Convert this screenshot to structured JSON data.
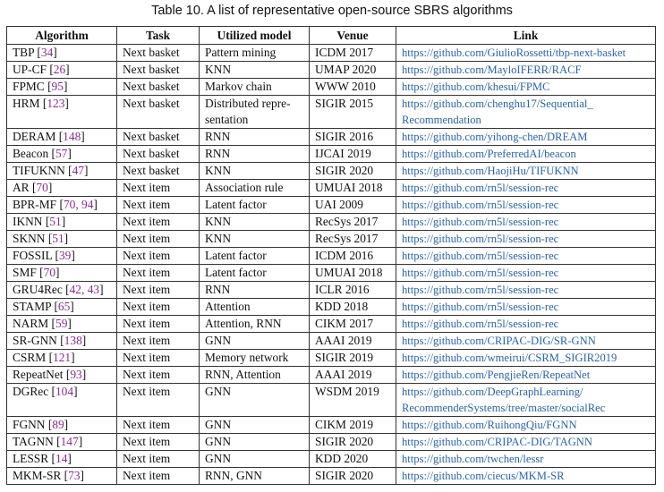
{
  "caption": "Table 10.   A list of representative open-source SBRS algorithms",
  "colors": {
    "citation": "#8a2c8f",
    "link": "#2a64a6"
  },
  "headers": [
    "Algorithm",
    "Task",
    "Utilized model",
    "Venue",
    "Link"
  ],
  "rows": [
    {
      "name": "TBP",
      "cite": "34",
      "task": "Next basket",
      "model": "Pattern mining",
      "venue": "ICDM 2017",
      "link": "https://github.com/GiulioRossetti/tbp-next-basket"
    },
    {
      "name": "UP-CF",
      "cite": "26",
      "task": "Next basket",
      "model": "KNN",
      "venue": "UMAP 2020",
      "link": "https://github.com/MayloIFERR/RACF"
    },
    {
      "name": "FPMC",
      "cite": "95",
      "task": "Next basket",
      "model": "Markov chain",
      "venue": "WWW 2010",
      "link": "https://github.com/khesui/FPMC"
    },
    {
      "name": "HRM",
      "cite": "123",
      "task": "Next basket",
      "model": "Distributed repre-sentation",
      "venue": "SIGIR 2015",
      "link": "https://github.com/chenghu17/Sequential_Recommendation"
    },
    {
      "name": "DERAM",
      "cite": "148",
      "task": "Next basket",
      "model": "RNN",
      "venue": "SIGIR 2016",
      "link": "https://github.com/yihong-chen/DREAM"
    },
    {
      "name": "Beacon",
      "cite": "57",
      "task": "Next basket",
      "model": "RNN",
      "venue": "IJCAI 2019",
      "link": "https://github.com/PreferredAI/beacon"
    },
    {
      "name": "TIFUKNN",
      "cite": "47",
      "task": "Next basket",
      "model": "KNN",
      "venue": "SIGIR 2020",
      "link": "https://github.com/HaojiHu/TIFUKNN"
    },
    {
      "name": "AR",
      "cite": "70",
      "task": "Next item",
      "model": "Association rule",
      "venue": "UMUAI 2018",
      "link": "https://github.com/rn5l/session-rec"
    },
    {
      "name": "BPR-MF",
      "cite": "70, 94",
      "task": "Next item",
      "model": "Latent factor",
      "venue": "UAI 2009",
      "link": "https://github.com/rn5l/session-rec"
    },
    {
      "name": "IKNN",
      "cite": "51",
      "task": "Next item",
      "model": "KNN",
      "venue": "RecSys 2017",
      "link": "https://github.com/rn5l/session-rec"
    },
    {
      "name": "SKNN",
      "cite": "51",
      "task": "Next item",
      "model": "KNN",
      "venue": "RecSys 2017",
      "link": "https://github.com/rn5l/session-rec"
    },
    {
      "name": "FOSSIL",
      "cite": "39",
      "task": "Next item",
      "model": "Latent factor",
      "venue": "ICDM 2016",
      "link": "https://github.com/rn5l/session-rec"
    },
    {
      "name": "SMF",
      "cite": "70",
      "task": "Next item",
      "model": "Latent factor",
      "venue": "UMUAI 2018",
      "link": "https://github.com/rn5l/session-rec"
    },
    {
      "name": "GRU4Rec",
      "cite": "42, 43",
      "task": "Next item",
      "model": "RNN",
      "venue": "ICLR 2016",
      "link": "https://github.com/rn5l/session-rec"
    },
    {
      "name": "STAMP",
      "cite": "65",
      "task": "Next item",
      "model": "Attention",
      "venue": "KDD 2018",
      "link": "https://github.com/rn5l/session-rec"
    },
    {
      "name": "NARM",
      "cite": "59",
      "task": "Next item",
      "model": "Attention, RNN",
      "venue": "CIKM 2017",
      "link": "https://github.com/rn5l/session-rec"
    },
    {
      "name": "SR-GNN",
      "cite": "138",
      "task": "Next item",
      "model": "GNN",
      "venue": "AAAI 2019",
      "link": "https://github.com/CRIPAC-DIG/SR-GNN"
    },
    {
      "name": "CSRM",
      "cite": "121",
      "task": "Next item",
      "model": "Memory network",
      "venue": "SIGIR 2019",
      "link": "https://github.com/wmeirui/CSRM_SIGIR2019"
    },
    {
      "name": "RepeatNet",
      "cite": "93",
      "task": "Next item",
      "model": "RNN, Attention",
      "venue": "AAAI 2019",
      "link": "https://github.com/PengjieRen/RepeatNet"
    },
    {
      "name": "DGRec",
      "cite": "104",
      "task": "Next item",
      "model": "GNN",
      "venue": "WSDM 2019",
      "link": "https://github.com/DeepGraphLearning/RecommenderSystems/tree/master/socialRec"
    },
    {
      "name": "FGNN",
      "cite": "89",
      "task": "Next item",
      "model": "GNN",
      "venue": "CIKM 2019",
      "link": "https://github.com/RuihongQiu/FGNN"
    },
    {
      "name": "TAGNN",
      "cite": "147",
      "task": "Next item",
      "model": "GNN",
      "venue": "SIGIR 2020",
      "link": "https://github.com/CRIPAC-DIG/TAGNN"
    },
    {
      "name": "LESSR",
      "cite": "14",
      "task": "Next item",
      "model": "GNN",
      "venue": "KDD 2020",
      "link": "https://github.com/twchen/lessr"
    },
    {
      "name": "MKM-SR",
      "cite": "73",
      "task": "Next item",
      "model": "RNN, GNN",
      "venue": "SIGIR 2020",
      "link": "https://github.com/ciecus/MKM-SR"
    }
  ]
}
